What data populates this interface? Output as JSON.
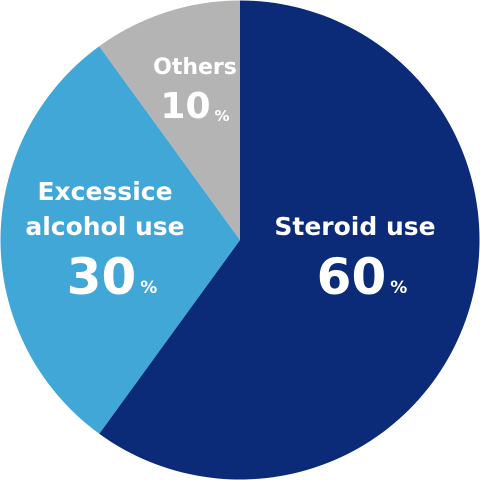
{
  "chart_data": {
    "type": "pie",
    "categories": [
      "Steroid use",
      "Excessice alcohol use",
      "Others"
    ],
    "values": [
      60,
      30,
      10
    ],
    "value_labels": [
      "60%",
      "30%",
      "10%"
    ],
    "colors": [
      "#0b2a78",
      "#41a7d7",
      "#b4b4b4"
    ]
  }
}
